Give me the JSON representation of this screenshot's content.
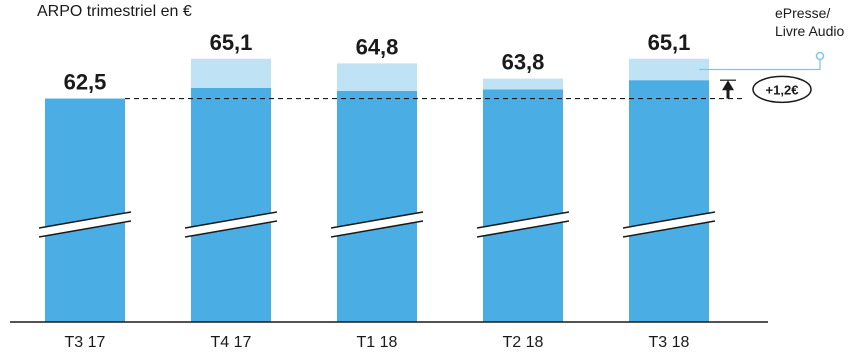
{
  "colors": {
    "base": "#4aaee4",
    "epresse": "#bfe2f5",
    "axis": "#1a1a1a",
    "legend_line": "#7ac6ee"
  },
  "chart_data": {
    "type": "bar",
    "stacked": true,
    "axis_break": true,
    "title": "ARPO trimestriel en €",
    "categories": [
      "T3 17",
      "T4 17",
      "T1 18",
      "T2 18",
      "T3 18"
    ],
    "totals": [
      62.5,
      65.1,
      64.8,
      63.8,
      65.1
    ],
    "total_labels": [
      "62,5",
      "65,1",
      "64,8",
      "63,8",
      "65,1"
    ],
    "series": [
      {
        "values": [
          62.5,
          63.2,
          63.0,
          63.1,
          63.7
        ]
      },
      {
        "name": "ePresse/ Livre Audio",
        "values": [
          0,
          1.9,
          1.8,
          0.7,
          1.4
        ]
      }
    ],
    "ylim": [
      0,
      66.0
    ],
    "reference_line": 62.5,
    "legend": {
      "lines": [
        "ePresse/",
        "Livre Audio"
      ],
      "position": "top-right"
    },
    "annotation": {
      "text": "+1,2€",
      "from": 62.5,
      "to": 63.7
    }
  }
}
